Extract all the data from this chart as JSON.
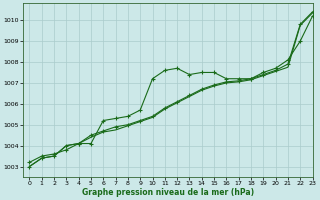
{
  "title": "",
  "xlabel": "Graphe pression niveau de la mer (hPa)",
  "xlim": [
    -0.5,
    23
  ],
  "ylim": [
    1002.5,
    1010.8
  ],
  "yticks": [
    1003,
    1004,
    1005,
    1006,
    1007,
    1008,
    1009,
    1010
  ],
  "xticks": [
    0,
    1,
    2,
    3,
    4,
    5,
    6,
    7,
    8,
    9,
    10,
    11,
    12,
    13,
    14,
    15,
    16,
    17,
    18,
    19,
    20,
    21,
    22,
    23
  ],
  "bg_color": "#cce8e8",
  "grid_color": "#aacccc",
  "line_color": "#1a6b1a",
  "line1_x": [
    0,
    1,
    2,
    3,
    4,
    5,
    6,
    7,
    8,
    9,
    10,
    11,
    12,
    13,
    14,
    15,
    16,
    17,
    18,
    19,
    20,
    21,
    22,
    23
  ],
  "line1_y": [
    1003.2,
    1003.5,
    1003.6,
    1003.8,
    1004.1,
    1004.1,
    1005.2,
    1005.3,
    1005.4,
    1005.7,
    1007.2,
    1007.6,
    1007.7,
    1007.4,
    1007.5,
    1007.5,
    1007.2,
    1007.2,
    1007.2,
    1007.5,
    1007.7,
    1008.1,
    1009.0,
    1010.2
  ],
  "line2_x": [
    0,
    1,
    2,
    3,
    4,
    5,
    6,
    7,
    8,
    9,
    10,
    11,
    12,
    13,
    14,
    15,
    16,
    17,
    18,
    19,
    20,
    21,
    22,
    23
  ],
  "line2_y": [
    1003.0,
    1003.4,
    1003.5,
    1004.0,
    1004.1,
    1004.5,
    1004.7,
    1004.9,
    1005.0,
    1005.2,
    1005.4,
    1005.8,
    1006.1,
    1006.4,
    1006.7,
    1006.9,
    1007.05,
    1007.1,
    1007.2,
    1007.4,
    1007.6,
    1007.9,
    1009.8,
    1010.4
  ],
  "line3_x": [
    0,
    1,
    2,
    3,
    4,
    5,
    6,
    7,
    8,
    9,
    10,
    11,
    12,
    13,
    14,
    15,
    16,
    17,
    18,
    19,
    20,
    21,
    22,
    23
  ],
  "line3_y": [
    1003.0,
    1003.4,
    1003.5,
    1004.0,
    1004.1,
    1004.4,
    1004.65,
    1004.75,
    1004.95,
    1005.15,
    1005.35,
    1005.75,
    1006.05,
    1006.35,
    1006.65,
    1006.85,
    1007.0,
    1007.05,
    1007.15,
    1007.35,
    1007.55,
    1007.75,
    1009.75,
    1010.35
  ]
}
